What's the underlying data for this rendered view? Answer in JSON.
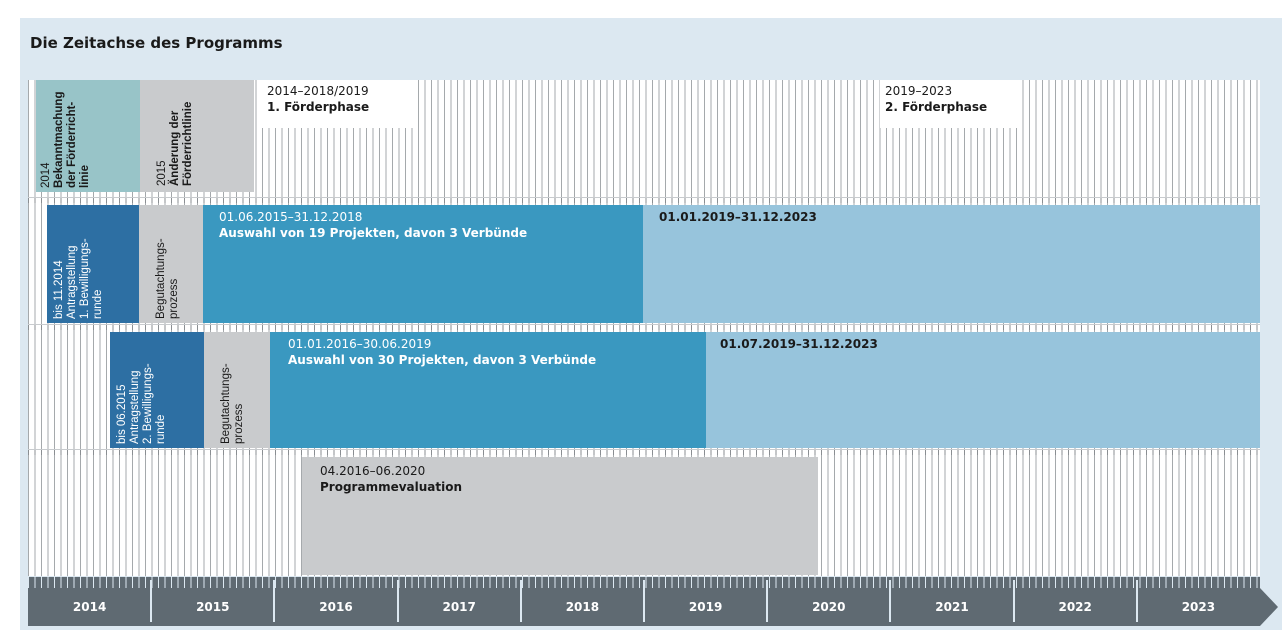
{
  "title": "Die Zeitachse des Programms",
  "colors": {
    "panel": "#dce8f1",
    "teal": "#98c4c8",
    "gray": "#c9cbcd",
    "dark_blue": "#2d6fa3",
    "mid_blue": "#3a98c0",
    "light_blue": "#97c4dc",
    "axis": "#5f6a72"
  },
  "phase_labels": {
    "bekanntmachung": [
      "2014",
      "Bekanntmachung",
      "der Förderricht-",
      "linie"
    ],
    "aenderung": [
      "2015",
      "Änderung der",
      "Förderrichtlinie"
    ],
    "phase1_dates": "2014–2018/2019",
    "phase1_name": "1. Förderphase",
    "phase2_dates": "2019–2023",
    "phase2_name": "2. Förderphase"
  },
  "round1": {
    "antrag": [
      "bis 11.2014",
      "Antragstellung",
      "1. Bewilligungs-",
      "runde"
    ],
    "begutachtung": [
      "Begutachtungs-",
      "prozess"
    ],
    "main_dates": "01.06.2015–31.12.2018",
    "main_text": "Auswahl von 19 Projekten, davon 3 Verbünde",
    "ext_dates": "01.01.2019–31.12.2023"
  },
  "round2": {
    "antrag": [
      "bis 06.2015",
      "Antragstellung",
      "2. Bewilligungs-",
      "runde"
    ],
    "begutachtung": [
      "Begutachtungs-",
      "prozess"
    ],
    "main_dates": "01.01.2016–30.06.2019",
    "main_text": "Auswahl von 30 Projekten, davon 3 Verbünde",
    "ext_dates": "01.07.2019–31.12.2023"
  },
  "evaluation": {
    "dates": "04.2016–06.2020",
    "text": "Programmevaluation"
  },
  "years": [
    "2014",
    "2015",
    "2016",
    "2017",
    "2018",
    "2019",
    "2020",
    "2021",
    "2022",
    "2023"
  ]
}
